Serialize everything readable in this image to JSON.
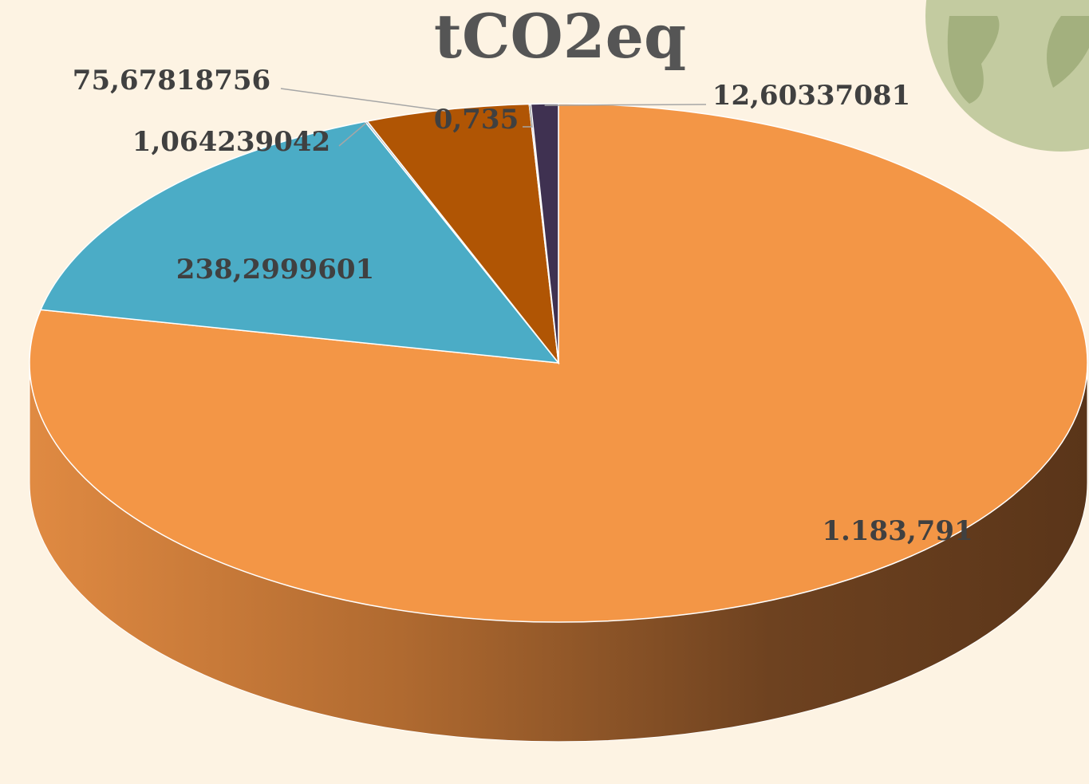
{
  "chart_data": {
    "type": "pie",
    "title": "tCO2eq",
    "values": [
      1183.791,
      238.2999601,
      1.064239042,
      75.67818756,
      0.735,
      12.60337081
    ],
    "value_labels": [
      "1.183,791",
      "238,2999601",
      "1,064239042",
      "75,67818756",
      "0,735",
      "12,60337081"
    ],
    "colors": [
      "#f39646",
      "#4bacc6",
      "#9aa5b1",
      "#b05504",
      "#7f6a9a",
      "#3f3151"
    ]
  }
}
